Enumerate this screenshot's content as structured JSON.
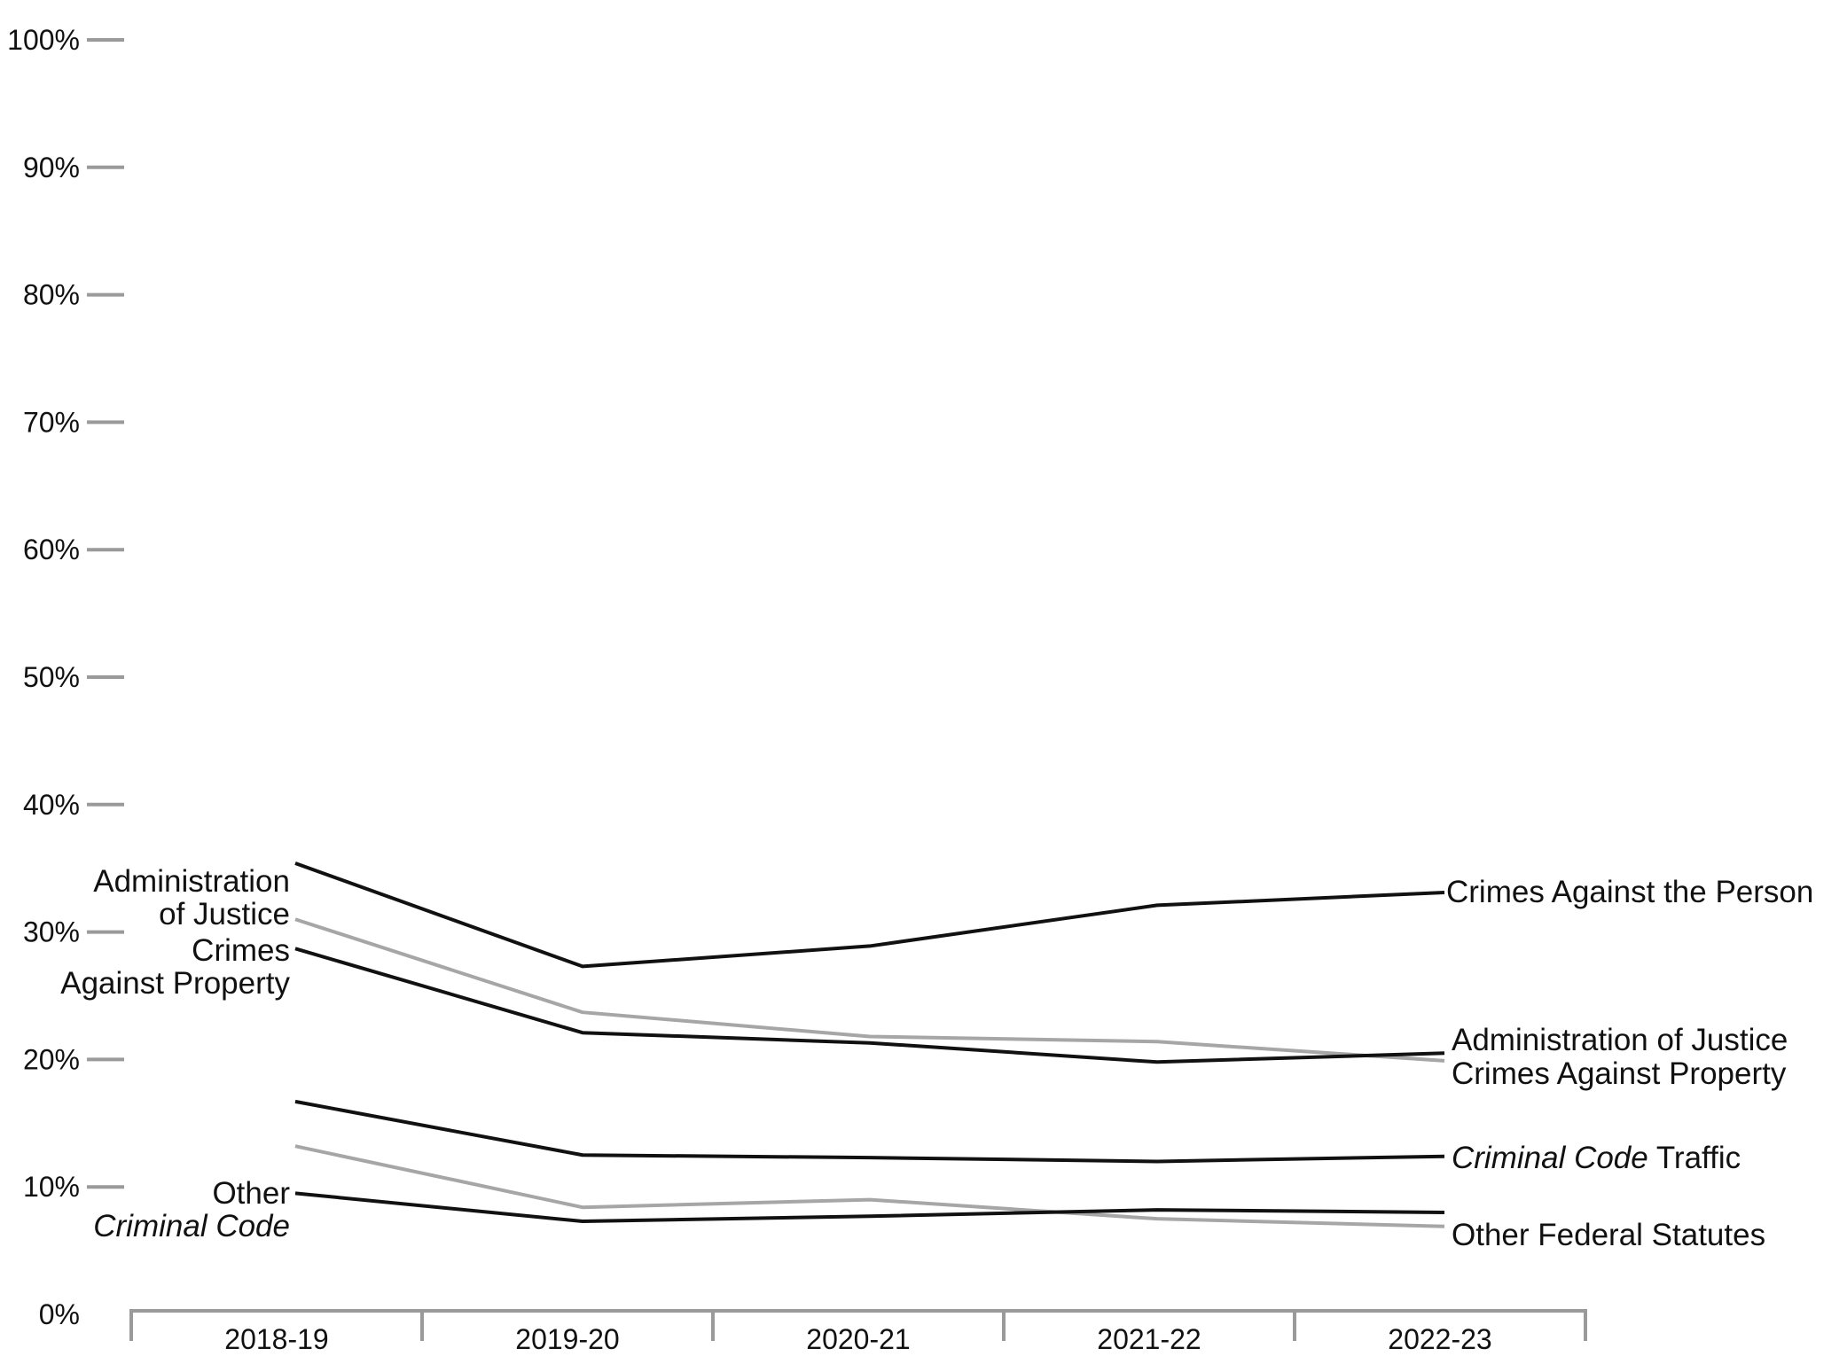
{
  "chart_data": {
    "type": "line",
    "title": "",
    "xlabel": "",
    "ylabel": "",
    "categories": [
      "2018-19",
      "2019-20",
      "2020-21",
      "2021-22",
      "2022-23"
    ],
    "ylim": [
      0,
      100
    ],
    "y_ticks": [
      "0%",
      "10%",
      "20%",
      "30%",
      "40%",
      "50%",
      "60%",
      "70%",
      "80%",
      "90%",
      "100%"
    ],
    "legend": "direct labels at line ends",
    "grid": false,
    "series": [
      {
        "key": "admin",
        "name_left": [
          "Administration",
          "of Justice"
        ],
        "name_right": [
          [
            "Administration of Justice",
            ""
          ]
        ],
        "color": "#111111",
        "values": [
          35.4,
          27.3,
          28.9,
          32.1,
          33.1
        ]
      },
      {
        "key": "property",
        "name_left": [
          "Crimes",
          "Against Property"
        ],
        "name_right": [
          [
            "Crimes Against Property",
            ""
          ]
        ],
        "color": "#a6a6a6",
        "values": [
          31.0,
          23.7,
          21.8,
          21.4,
          19.9
        ]
      },
      {
        "key": "person",
        "name_left": [],
        "name_right": [
          [
            "Crimes Against the Person",
            ""
          ]
        ],
        "color": "#111111",
        "values": [
          28.7,
          22.1,
          21.3,
          19.8,
          20.5
        ]
      },
      {
        "key": "traffic",
        "name_left": [],
        "name_right": [
          [
            "Criminal Code",
            " Traffic"
          ]
        ],
        "color": "#111111",
        "values": [
          16.7,
          12.5,
          12.3,
          12.0,
          12.4
        ]
      },
      {
        "key": "federal",
        "name_left": [],
        "name_right": [
          [
            "Other Federal Statutes",
            ""
          ]
        ],
        "color": "#a6a6a6",
        "values": [
          13.2,
          8.4,
          9.0,
          7.5,
          6.9
        ]
      },
      {
        "key": "othercc",
        "name_left": [
          "Other",
          "Criminal Code"
        ],
        "name_right": [],
        "color": "#111111",
        "values": [
          9.5,
          7.3,
          7.7,
          8.2,
          8.0
        ]
      }
    ]
  }
}
